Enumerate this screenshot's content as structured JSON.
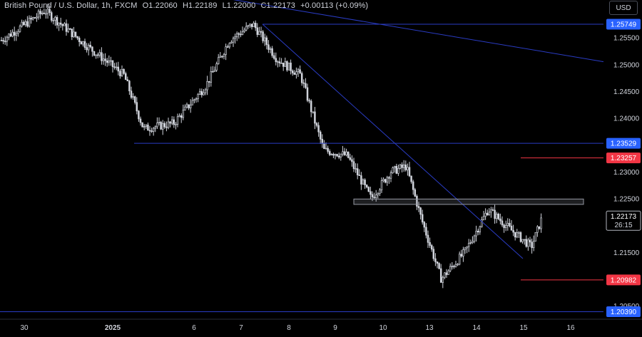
{
  "header": {
    "symbol": "British Pound / U.S. Dollar, 1h, FXCM",
    "open": "O1.22060",
    "high": "H1.22189",
    "low": "L1.22000",
    "close": "C1.22173",
    "change": "+0.00113 (+0.09%)",
    "currency_button": "USD"
  },
  "colors": {
    "background": "#000000",
    "candle": "#d1d4dc",
    "trendline": "#2a3cc4",
    "support": "#2962ff",
    "target": "#f23645",
    "price_tag_blue": "#2962ff",
    "price_tag_red": "#f23645",
    "current_tag": "#e0e3eb"
  },
  "chart_data": {
    "type": "candlestick",
    "title": "British Pound / U.S. Dollar, 1h, FXCM",
    "xlabel": "",
    "ylabel": "",
    "x_ticks": [
      "30",
      "2025",
      "6",
      "7",
      "8",
      "9",
      "10",
      "13",
      "14",
      "15",
      "16"
    ],
    "y_ticks": [
      "1.25500",
      "1.25000",
      "1.24500",
      "1.24000",
      "1.23000",
      "1.22500",
      "1.21500",
      "1.20500"
    ],
    "ylim": [
      1.2025,
      1.262
    ],
    "grid": false,
    "series": [
      {
        "name": "GBPUSD",
        "key_points": [
          {
            "x": "Dec 27",
            "y": 1.2545
          },
          {
            "x": "Dec 30",
            "y": 1.26
          },
          {
            "x": "Dec 31",
            "y": 1.253
          },
          {
            "x": "Jan 2",
            "y": 1.248
          },
          {
            "x": "Jan 2",
            "y": 1.238
          },
          {
            "x": "Jan 3",
            "y": 1.239
          },
          {
            "x": "Jan 6",
            "y": 1.246
          },
          {
            "x": "Jan 6",
            "y": 1.2545
          },
          {
            "x": "Jan 7",
            "y": 1.2575
          },
          {
            "x": "Jan 7",
            "y": 1.251
          },
          {
            "x": "Jan 8",
            "y": 1.248
          },
          {
            "x": "Jan 8",
            "y": 1.234
          },
          {
            "x": "Jan 9",
            "y": 1.233
          },
          {
            "x": "Jan 9",
            "y": 1.225
          },
          {
            "x": "Jan 10",
            "y": 1.23
          },
          {
            "x": "Jan 10",
            "y": 1.231
          },
          {
            "x": "Jan 10",
            "y": 1.221
          },
          {
            "x": "Jan 13",
            "y": 1.21
          },
          {
            "x": "Jan 13",
            "y": 1.215
          },
          {
            "x": "Jan 14",
            "y": 1.223
          },
          {
            "x": "Jan 14",
            "y": 1.219
          },
          {
            "x": "Jan 15",
            "y": 1.216
          },
          {
            "x": "Jan 15",
            "y": 1.224
          },
          {
            "x": "Jan 15",
            "y": 1.2217
          }
        ]
      }
    ],
    "horizontal_levels": [
      {
        "label": "1.25749",
        "value": 1.25749,
        "kind": "support"
      },
      {
        "label": "1.23529",
        "value": 1.23529,
        "kind": "support"
      },
      {
        "label": "1.23257",
        "value": 1.23257,
        "kind": "target"
      },
      {
        "label": "1.20982",
        "value": 1.20982,
        "kind": "target"
      },
      {
        "label": "1.20390",
        "value": 1.2039,
        "kind": "support"
      }
    ],
    "current_price": {
      "label": "1.22173",
      "countdown": "26:15",
      "value": 1.22173
    },
    "resistance_zone": {
      "top": 1.2249,
      "bottom": 1.2239
    },
    "trendlines": [
      {
        "from": {
          "x": "Dec 31",
          "y": 1.264
        },
        "to": {
          "x": "Jan 16+",
          "y": 1.2505
        }
      },
      {
        "from": {
          "x": "Jan 7",
          "y": 1.2575
        },
        "to": {
          "x": "Jan 15",
          "y": 1.2138
        }
      }
    ]
  }
}
